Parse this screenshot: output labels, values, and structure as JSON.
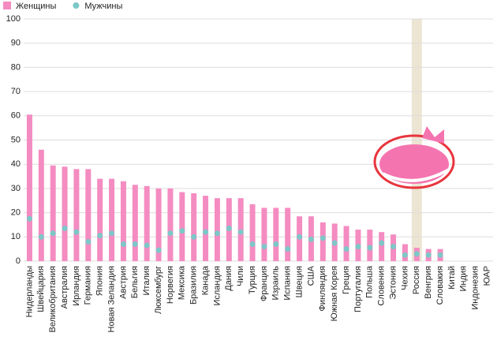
{
  "chart_data": {
    "type": "bar",
    "categories": [
      "Нидерланды",
      "Швейцария",
      "Великобритания",
      "Австралия",
      "Ирландия",
      "Германия",
      "Япония",
      "Новая Зеландия",
      "Австрия",
      "Бельгия",
      "Италия",
      "Люксембург",
      "Норвегия",
      "Мексика",
      "Бразилия",
      "Канада",
      "Исландия",
      "Дания",
      "Чили",
      "Турция",
      "Франция",
      "Израиль",
      "Испания",
      "Швеция",
      "США",
      "Финляндия",
      "Южная Корея",
      "Греция",
      "Португалия",
      "Польша",
      "Словения",
      "Эстония",
      "Чехия",
      "Россия",
      "Венгрия",
      "Словакия",
      "Китай",
      "Индия",
      "Индонезия",
      "ЮАР"
    ],
    "series": [
      {
        "name": "Женщины",
        "color": "#f48cc1",
        "mark": "bar",
        "values": [
          60.5,
          46,
          39.5,
          39,
          38,
          38,
          34,
          34,
          33,
          31.5,
          31,
          30,
          30,
          28.5,
          28,
          27,
          26,
          26,
          26,
          23.5,
          22,
          22,
          22,
          18.5,
          18.5,
          16,
          15.5,
          14.5,
          13,
          13,
          12,
          11,
          7,
          5.5,
          5,
          5,
          null,
          null,
          null,
          null
        ]
      },
      {
        "name": "Мужчины",
        "color": "#7cc7c7",
        "mark": "dot",
        "values": [
          17.5,
          10,
          11.5,
          13.5,
          12,
          8,
          10.5,
          11.5,
          7,
          7,
          6.5,
          4.5,
          11.5,
          12.5,
          10,
          12,
          11.5,
          13.5,
          12,
          7,
          6,
          7,
          5,
          10,
          9,
          9.5,
          7.5,
          5,
          6,
          5.5,
          7.5,
          6,
          2.5,
          3,
          2.5,
          2.5,
          null,
          null,
          null,
          null
        ]
      }
    ],
    "highlight_category": "Россия",
    "highlight_color": "#ede5d3",
    "ylim": [
      0,
      100
    ],
    "yticks": [
      0,
      10,
      20,
      30,
      40,
      50,
      60,
      70,
      80,
      90,
      100
    ],
    "grid": true,
    "legend": "top-left"
  }
}
